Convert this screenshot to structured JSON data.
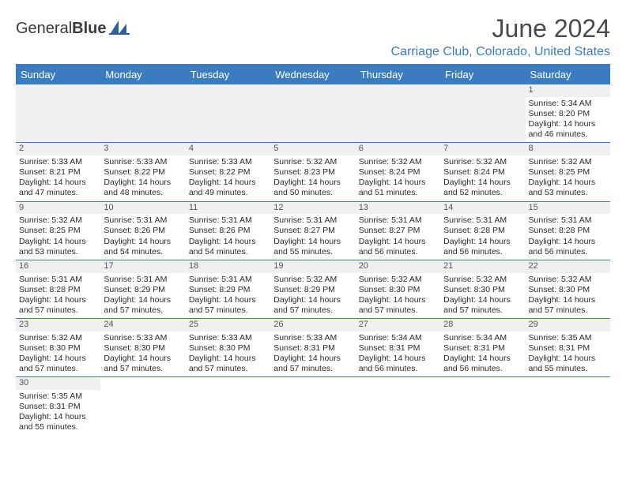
{
  "brand": {
    "name_a": "General",
    "name_b": "Blue"
  },
  "title": "June 2024",
  "location": "Carriage Club, Colorado, United States",
  "colors": {
    "accent": "#3b7bbf",
    "header_bg": "#3b7bbf",
    "header_text": "#ffffff",
    "daynum_bg": "#f0f0f0",
    "border": "#3b7bbf",
    "text": "#2a2a2a",
    "title_text": "#4a4a4a"
  },
  "day_names": [
    "Sunday",
    "Monday",
    "Tuesday",
    "Wednesday",
    "Thursday",
    "Friday",
    "Saturday"
  ],
  "weeks": [
    [
      null,
      null,
      null,
      null,
      null,
      null,
      {
        "d": "1",
        "sr": "Sunrise: 5:34 AM",
        "ss": "Sunset: 8:20 PM",
        "dl1": "Daylight: 14 hours",
        "dl2": "and 46 minutes."
      }
    ],
    [
      {
        "d": "2",
        "sr": "Sunrise: 5:33 AM",
        "ss": "Sunset: 8:21 PM",
        "dl1": "Daylight: 14 hours",
        "dl2": "and 47 minutes."
      },
      {
        "d": "3",
        "sr": "Sunrise: 5:33 AM",
        "ss": "Sunset: 8:22 PM",
        "dl1": "Daylight: 14 hours",
        "dl2": "and 48 minutes."
      },
      {
        "d": "4",
        "sr": "Sunrise: 5:33 AM",
        "ss": "Sunset: 8:22 PM",
        "dl1": "Daylight: 14 hours",
        "dl2": "and 49 minutes."
      },
      {
        "d": "5",
        "sr": "Sunrise: 5:32 AM",
        "ss": "Sunset: 8:23 PM",
        "dl1": "Daylight: 14 hours",
        "dl2": "and 50 minutes."
      },
      {
        "d": "6",
        "sr": "Sunrise: 5:32 AM",
        "ss": "Sunset: 8:24 PM",
        "dl1": "Daylight: 14 hours",
        "dl2": "and 51 minutes."
      },
      {
        "d": "7",
        "sr": "Sunrise: 5:32 AM",
        "ss": "Sunset: 8:24 PM",
        "dl1": "Daylight: 14 hours",
        "dl2": "and 52 minutes."
      },
      {
        "d": "8",
        "sr": "Sunrise: 5:32 AM",
        "ss": "Sunset: 8:25 PM",
        "dl1": "Daylight: 14 hours",
        "dl2": "and 53 minutes."
      }
    ],
    [
      {
        "d": "9",
        "sr": "Sunrise: 5:32 AM",
        "ss": "Sunset: 8:25 PM",
        "dl1": "Daylight: 14 hours",
        "dl2": "and 53 minutes."
      },
      {
        "d": "10",
        "sr": "Sunrise: 5:31 AM",
        "ss": "Sunset: 8:26 PM",
        "dl1": "Daylight: 14 hours",
        "dl2": "and 54 minutes."
      },
      {
        "d": "11",
        "sr": "Sunrise: 5:31 AM",
        "ss": "Sunset: 8:26 PM",
        "dl1": "Daylight: 14 hours",
        "dl2": "and 54 minutes."
      },
      {
        "d": "12",
        "sr": "Sunrise: 5:31 AM",
        "ss": "Sunset: 8:27 PM",
        "dl1": "Daylight: 14 hours",
        "dl2": "and 55 minutes."
      },
      {
        "d": "13",
        "sr": "Sunrise: 5:31 AM",
        "ss": "Sunset: 8:27 PM",
        "dl1": "Daylight: 14 hours",
        "dl2": "and 56 minutes."
      },
      {
        "d": "14",
        "sr": "Sunrise: 5:31 AM",
        "ss": "Sunset: 8:28 PM",
        "dl1": "Daylight: 14 hours",
        "dl2": "and 56 minutes."
      },
      {
        "d": "15",
        "sr": "Sunrise: 5:31 AM",
        "ss": "Sunset: 8:28 PM",
        "dl1": "Daylight: 14 hours",
        "dl2": "and 56 minutes."
      }
    ],
    [
      {
        "d": "16",
        "sr": "Sunrise: 5:31 AM",
        "ss": "Sunset: 8:28 PM",
        "dl1": "Daylight: 14 hours",
        "dl2": "and 57 minutes."
      },
      {
        "d": "17",
        "sr": "Sunrise: 5:31 AM",
        "ss": "Sunset: 8:29 PM",
        "dl1": "Daylight: 14 hours",
        "dl2": "and 57 minutes."
      },
      {
        "d": "18",
        "sr": "Sunrise: 5:31 AM",
        "ss": "Sunset: 8:29 PM",
        "dl1": "Daylight: 14 hours",
        "dl2": "and 57 minutes."
      },
      {
        "d": "19",
        "sr": "Sunrise: 5:32 AM",
        "ss": "Sunset: 8:29 PM",
        "dl1": "Daylight: 14 hours",
        "dl2": "and 57 minutes."
      },
      {
        "d": "20",
        "sr": "Sunrise: 5:32 AM",
        "ss": "Sunset: 8:30 PM",
        "dl1": "Daylight: 14 hours",
        "dl2": "and 57 minutes."
      },
      {
        "d": "21",
        "sr": "Sunrise: 5:32 AM",
        "ss": "Sunset: 8:30 PM",
        "dl1": "Daylight: 14 hours",
        "dl2": "and 57 minutes."
      },
      {
        "d": "22",
        "sr": "Sunrise: 5:32 AM",
        "ss": "Sunset: 8:30 PM",
        "dl1": "Daylight: 14 hours",
        "dl2": "and 57 minutes."
      }
    ],
    [
      {
        "d": "23",
        "sr": "Sunrise: 5:32 AM",
        "ss": "Sunset: 8:30 PM",
        "dl1": "Daylight: 14 hours",
        "dl2": "and 57 minutes."
      },
      {
        "d": "24",
        "sr": "Sunrise: 5:33 AM",
        "ss": "Sunset: 8:30 PM",
        "dl1": "Daylight: 14 hours",
        "dl2": "and 57 minutes."
      },
      {
        "d": "25",
        "sr": "Sunrise: 5:33 AM",
        "ss": "Sunset: 8:30 PM",
        "dl1": "Daylight: 14 hours",
        "dl2": "and 57 minutes."
      },
      {
        "d": "26",
        "sr": "Sunrise: 5:33 AM",
        "ss": "Sunset: 8:31 PM",
        "dl1": "Daylight: 14 hours",
        "dl2": "and 57 minutes."
      },
      {
        "d": "27",
        "sr": "Sunrise: 5:34 AM",
        "ss": "Sunset: 8:31 PM",
        "dl1": "Daylight: 14 hours",
        "dl2": "and 56 minutes."
      },
      {
        "d": "28",
        "sr": "Sunrise: 5:34 AM",
        "ss": "Sunset: 8:31 PM",
        "dl1": "Daylight: 14 hours",
        "dl2": "and 56 minutes."
      },
      {
        "d": "29",
        "sr": "Sunrise: 5:35 AM",
        "ss": "Sunset: 8:31 PM",
        "dl1": "Daylight: 14 hours",
        "dl2": "and 55 minutes."
      }
    ],
    [
      {
        "d": "30",
        "sr": "Sunrise: 5:35 AM",
        "ss": "Sunset: 8:31 PM",
        "dl1": "Daylight: 14 hours",
        "dl2": "and 55 minutes."
      },
      null,
      null,
      null,
      null,
      null,
      null
    ]
  ]
}
